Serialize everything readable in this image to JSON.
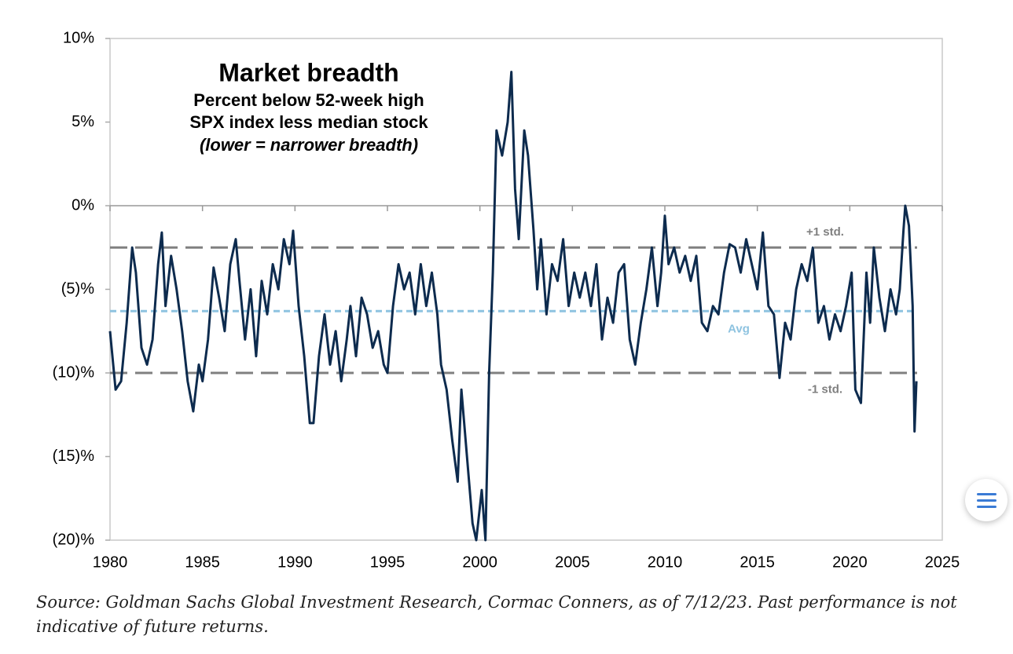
{
  "chart_data": {
    "type": "line",
    "title": "Market breadth",
    "subtitle": [
      "Percent below 52-week high",
      "SPX index less median stock",
      "(lower = narrower breadth)"
    ],
    "source": "Source: Goldman Sachs Global Investment Research, Cormac Conners, as of 7/12/23. Past performance is not indicative of future returns.",
    "x": [
      1980.0,
      1980.3,
      1980.6,
      1980.9,
      1981.2,
      1981.4,
      1981.7,
      1982.0,
      1982.3,
      1982.6,
      1982.8,
      1983.0,
      1983.3,
      1983.6,
      1983.9,
      1984.2,
      1984.5,
      1984.8,
      1985.0,
      1985.3,
      1985.6,
      1985.9,
      1986.2,
      1986.5,
      1986.8,
      1987.0,
      1987.3,
      1987.6,
      1987.9,
      1988.2,
      1988.5,
      1988.8,
      1989.1,
      1989.4,
      1989.7,
      1989.9,
      1990.2,
      1990.5,
      1990.8,
      1991.0,
      1991.3,
      1991.6,
      1991.9,
      1992.2,
      1992.5,
      1992.8,
      1993.0,
      1993.3,
      1993.6,
      1993.9,
      1994.2,
      1994.5,
      1994.8,
      1995.0,
      1995.3,
      1995.6,
      1995.9,
      1996.2,
      1996.5,
      1996.8,
      1997.1,
      1997.4,
      1997.7,
      1997.9,
      1998.2,
      1998.5,
      1998.8,
      1999.0,
      1999.3,
      1999.6,
      1999.8,
      2000.1,
      2000.3,
      2000.5,
      2000.7,
      2000.9,
      2001.2,
      2001.5,
      2001.7,
      2001.9,
      2002.1,
      2002.4,
      2002.6,
      2002.9,
      2003.1,
      2003.3,
      2003.6,
      2003.9,
      2004.2,
      2004.5,
      2004.8,
      2005.1,
      2005.4,
      2005.7,
      2006.0,
      2006.3,
      2006.6,
      2006.9,
      2007.2,
      2007.5,
      2007.8,
      2008.1,
      2008.4,
      2008.7,
      2009.0,
      2009.3,
      2009.6,
      2009.8,
      2010.0,
      2010.2,
      2010.5,
      2010.8,
      2011.1,
      2011.4,
      2011.7,
      2012.0,
      2012.3,
      2012.6,
      2012.9,
      2013.2,
      2013.5,
      2013.8,
      2014.1,
      2014.4,
      2014.7,
      2015.0,
      2015.3,
      2015.6,
      2015.9,
      2016.2,
      2016.5,
      2016.8,
      2017.1,
      2017.4,
      2017.7,
      2018.0,
      2018.3,
      2018.6,
      2018.9,
      2019.2,
      2019.5,
      2019.8,
      2020.1,
      2020.3,
      2020.6,
      2020.9,
      2021.1,
      2021.3,
      2021.6,
      2021.9,
      2022.2,
      2022.5,
      2022.7,
      2022.9,
      2023.0,
      2023.2,
      2023.4,
      2023.5,
      2023.6
    ],
    "series": [
      {
        "color": "#0d2b4e",
        "values": [
          -7.5,
          -11,
          -10.5,
          -7,
          -2.5,
          -4,
          -8.5,
          -9.5,
          -8,
          -3.5,
          -1.6,
          -6,
          -3,
          -5,
          -7.5,
          -10.5,
          -12.3,
          -9.5,
          -10.5,
          -8,
          -3.7,
          -5.5,
          -7.5,
          -3.5,
          -2,
          -4.5,
          -8,
          -5,
          -9,
          -4.5,
          -6.5,
          -3.5,
          -5,
          -2,
          -3.5,
          -1.5,
          -6,
          -9,
          -13,
          -13,
          -9,
          -6.5,
          -9.5,
          -7.5,
          -10.5,
          -8,
          -6,
          -9,
          -5.5,
          -6.5,
          -8.5,
          -7.5,
          -9.5,
          -10,
          -6,
          -3.5,
          -5,
          -4,
          -6.5,
          -3.5,
          -6,
          -4,
          -6.5,
          -9.5,
          -11,
          -14,
          -16.5,
          -11,
          -15,
          -19,
          -20,
          -17,
          -20,
          -10,
          -4,
          4.5,
          3,
          5,
          8,
          1,
          -2,
          4.5,
          3,
          -1.5,
          -5,
          -2,
          -6.5,
          -3.5,
          -4.5,
          -2,
          -6,
          -4,
          -5.5,
          -4,
          -6,
          -3.5,
          -8,
          -5.5,
          -7,
          -4,
          -3.5,
          -8,
          -9.5,
          -7,
          -5,
          -2.5,
          -6,
          -4,
          -0.6,
          -3.5,
          -2.5,
          -4,
          -3,
          -4.5,
          -3,
          -7,
          -7.5,
          -6,
          -6.5,
          -4,
          -2.3,
          -2.5,
          -4,
          -2,
          -3.5,
          -5,
          -1.6,
          -6,
          -6.5,
          -10.3,
          -7,
          -8,
          -5,
          -3.5,
          -4.5,
          -2.5,
          -7,
          -6,
          -8,
          -6.5,
          -7.5,
          -6,
          -4,
          -11,
          -11.8,
          -4,
          -7,
          -2.5,
          -5.5,
          -7.5,
          -5,
          -6.5,
          -5,
          -1.5,
          0,
          -1.2,
          -6,
          -13.5,
          -10.5
        ]
      }
    ],
    "reference_lines": [
      {
        "label": "+1 std.",
        "value": -2.5,
        "color": "#808080"
      },
      {
        "label": "Avg",
        "value": -6.3,
        "color": "#8ec3e0"
      },
      {
        "label": "-1 std.",
        "value": -10,
        "color": "#808080"
      }
    ],
    "xlim": [
      1980,
      2025
    ],
    "xticks": [
      1980,
      1985,
      1990,
      1995,
      2000,
      2005,
      2010,
      2015,
      2020,
      2025
    ],
    "ylim": [
      -20,
      10
    ],
    "yticks": [
      {
        "value": 10,
        "label": "10%"
      },
      {
        "value": 5,
        "label": "5%"
      },
      {
        "value": 0,
        "label": "0%"
      },
      {
        "value": -5,
        "label": "(5)%"
      },
      {
        "value": -10,
        "label": "(10)%"
      },
      {
        "value": -15,
        "label": "(15)%"
      },
      {
        "value": -20,
        "label": "(20)%"
      }
    ],
    "grid": false
  }
}
